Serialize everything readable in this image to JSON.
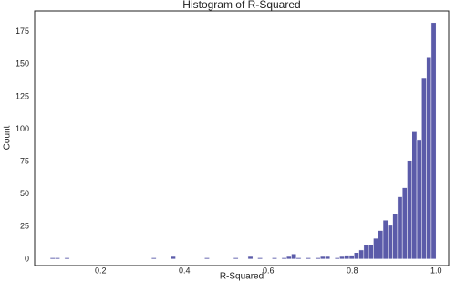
{
  "chart_data": {
    "type": "histogram",
    "title": "Histogram of R-Squared",
    "x_label": "R-Squared",
    "y_label": "Count",
    "color": "#5b5ba9",
    "bins": [
      0.08,
      0.0915,
      0.103,
      0.1145,
      0.126,
      0.1375,
      0.149,
      0.1605,
      0.172,
      0.1835,
      0.195,
      0.2065,
      0.218,
      0.2295,
      0.241,
      0.2525,
      0.264,
      0.2755,
      0.287,
      0.2985,
      0.31,
      0.3215,
      0.333,
      0.3445,
      0.356,
      0.3675,
      0.379,
      0.3905,
      0.402,
      0.4135,
      0.425,
      0.4365,
      0.448,
      0.4595,
      0.471,
      0.4825,
      0.494,
      0.5055,
      0.517,
      0.5285,
      0.54,
      0.5515,
      0.563,
      0.5745,
      0.586,
      0.5975,
      0.609,
      0.6205,
      0.632,
      0.6435,
      0.655,
      0.6665,
      0.678,
      0.6895,
      0.701,
      0.7125,
      0.724,
      0.7355,
      0.747,
      0.7585,
      0.77,
      0.7815,
      0.793,
      0.8045,
      0.816,
      0.8275,
      0.839,
      0.8505,
      0.862,
      0.8735,
      0.885,
      0.8965,
      0.908,
      0.9195,
      0.931,
      0.9425,
      0.954,
      0.9655,
      0.977,
      0.9885,
      1.0
    ],
    "values": [
      1,
      1,
      0,
      1,
      0,
      0,
      0,
      0,
      0,
      0,
      0,
      0,
      0,
      0,
      0,
      0,
      0,
      0,
      0,
      0,
      0,
      1,
      0,
      0,
      0,
      2,
      0,
      0,
      0,
      0,
      0,
      0,
      1,
      0,
      0,
      0,
      0,
      0,
      1,
      0,
      0,
      2,
      0,
      1,
      0,
      0,
      1,
      0,
      1,
      2,
      4,
      1,
      0,
      1,
      0,
      1,
      2,
      2,
      0,
      1,
      2,
      3,
      3,
      5,
      7,
      11,
      11,
      16,
      22,
      30,
      26,
      35,
      48,
      55,
      76,
      98,
      92,
      139,
      155,
      182
    ],
    "xlim": [
      0.043,
      1.03
    ],
    "ylim": [
      -5,
      191
    ],
    "xticks": [
      0.2,
      0.4,
      0.6,
      0.8,
      {
        "value": 1,
        "label": "1.0"
      }
    ],
    "yticks": [
      0,
      25,
      50,
      75,
      100,
      125,
      150,
      175
    ]
  }
}
